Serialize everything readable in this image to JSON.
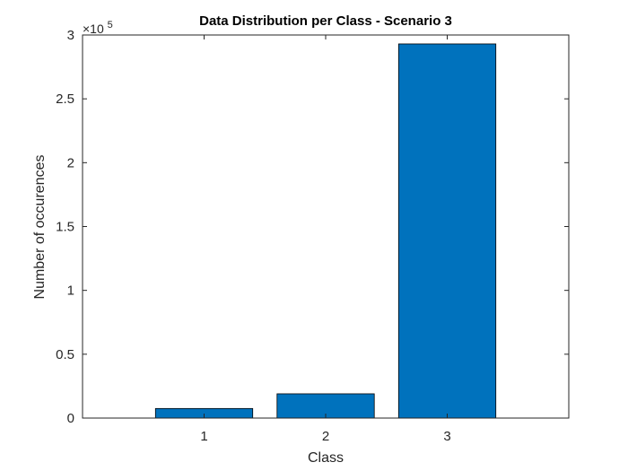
{
  "chart_data": {
    "type": "bar",
    "title": "Data Distribution per Class - Scenario 3",
    "xlabel": "Class",
    "ylabel": "Number of occurences",
    "categories": [
      "1",
      "2",
      "3"
    ],
    "values": [
      7500,
      19000,
      293000
    ],
    "xlim": [
      0,
      4
    ],
    "ylim": [
      0,
      300000
    ],
    "y_ticks": [
      0,
      50000,
      100000,
      150000,
      200000,
      250000,
      300000
    ],
    "y_tick_labels": [
      "0",
      "0.5",
      "1",
      "1.5",
      "2",
      "2.5",
      "3"
    ],
    "y_exponent_label": {
      "base": "×10",
      "exponent": "5"
    },
    "bar_color": "#0072BD",
    "bar_edge_color": "#000000",
    "grid": false,
    "legend": "none"
  }
}
